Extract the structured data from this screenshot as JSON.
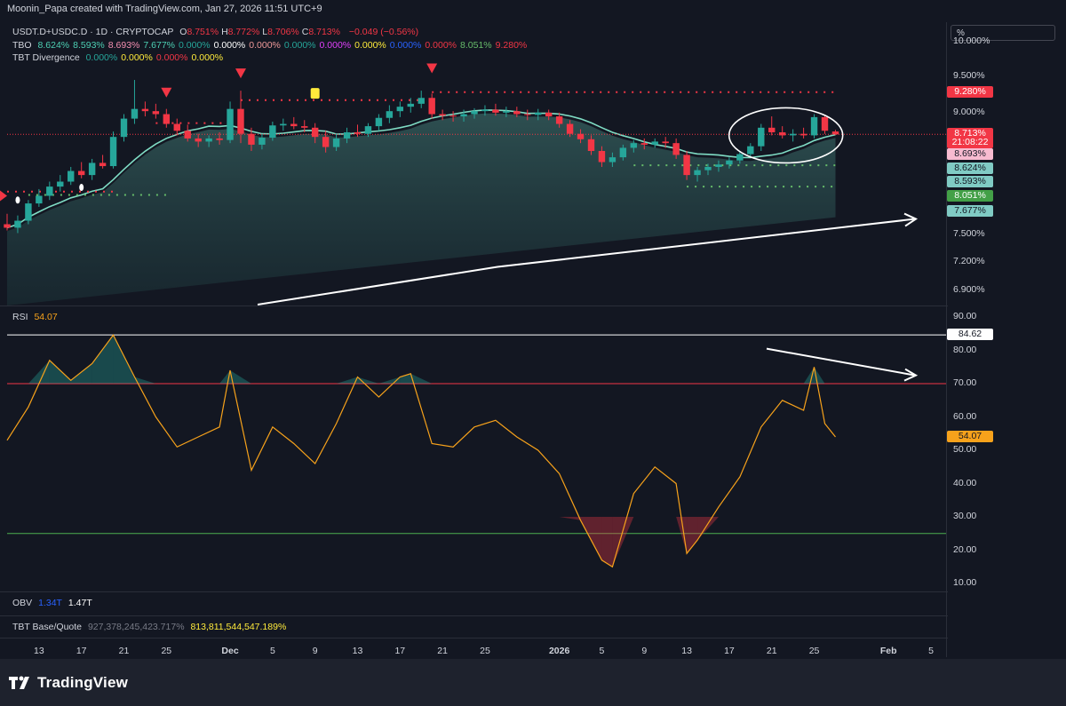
{
  "header": {
    "credit": "Moonin_Papa created with TradingView.com, Jan 27, 2026 11:51 UTC+9"
  },
  "legend": {
    "symbol": "USDT.D+USDC.D · 1D · CRYPTOCAP",
    "ohlc": [
      {
        "label": "O",
        "value": "8.751%"
      },
      {
        "label": "H",
        "value": "8.772%"
      },
      {
        "label": "L",
        "value": "8.706%"
      },
      {
        "label": "C",
        "value": "8.713%"
      }
    ],
    "change": "−0.049 (−0.56%)",
    "tbo_name": "TBO",
    "tbo_values": [
      {
        "v": "8.624%",
        "color": "#4dd0b4"
      },
      {
        "v": "8.593%",
        "color": "#4dd0b4"
      },
      {
        "v": "8.693%",
        "color": "#f48fb1"
      },
      {
        "v": "7.677%",
        "color": "#4dd0b4"
      },
      {
        "v": "0.000%",
        "color": "#26a69a"
      },
      {
        "v": "0.000%",
        "color": "#ffffff"
      },
      {
        "v": "0.000%",
        "color": "#ef9a9a"
      },
      {
        "v": "0.000%",
        "color": "#26a69a"
      },
      {
        "v": "0.000%",
        "color": "#e040fb"
      },
      {
        "v": "0.000%",
        "color": "#ffeb3b"
      },
      {
        "v": "0.000%",
        "color": "#2962ff"
      },
      {
        "v": "0.000%",
        "color": "#f23645"
      },
      {
        "v": "8.051%",
        "color": "#66bb6a"
      },
      {
        "v": "9.280%",
        "color": "#f23645"
      }
    ],
    "div_name": "TBT Divergence",
    "div_values": [
      {
        "v": "0.000%",
        "color": "#26a69a"
      },
      {
        "v": "0.000%",
        "color": "#ffeb3b"
      },
      {
        "v": "0.000%",
        "color": "#f23645"
      },
      {
        "v": "0.000%",
        "color": "#ffeb3b"
      }
    ]
  },
  "scale_mode": "%",
  "price_axis": [
    "10.000%",
    "9.500%",
    "9.000%",
    "7.500%",
    "7.200%",
    "6.900%"
  ],
  "price_tags": [
    {
      "text": "9.280%",
      "price": 9.28,
      "bg": "#f23645",
      "fg": "#ffffff"
    },
    {
      "text": "8.713%",
      "price": 8.713,
      "bg": "#f23645",
      "fg": "#ffffff"
    },
    {
      "text": "21:08:22",
      "price": 8.6,
      "bg": "#f23645",
      "fg": "#ffffff"
    },
    {
      "text": "8.693%",
      "price": 8.45,
      "bg": "#f8bbd0",
      "fg": "#131722"
    },
    {
      "text": "8.624%",
      "price": 8.28,
      "bg": "#80cbc4",
      "fg": "#131722"
    },
    {
      "text": "8.593%",
      "price": 8.11,
      "bg": "#80cbc4",
      "fg": "#131722"
    },
    {
      "text": "8.051%",
      "price": 7.94,
      "bg": "#43a047",
      "fg": "#ffffff"
    },
    {
      "text": "7.677%",
      "price": 7.77,
      "bg": "#80cbc4",
      "fg": "#131722"
    }
  ],
  "rsi": {
    "label": "RSI",
    "value": "54.07",
    "axis": [
      "90.00",
      "80.00",
      "70.00",
      "60.00",
      "50.00",
      "40.00",
      "30.00",
      "20.00",
      "10.00"
    ],
    "max_tag": "84.62",
    "value_tag": "54.07"
  },
  "obv": {
    "label": "OBV",
    "v1": "1.34T",
    "v2": "1.47T"
  },
  "tbt_bq": {
    "label": "TBT Base/Quote",
    "v1": "927,378,245,423.717%",
    "v2": "813,811,544,547.189%"
  },
  "time_axis": [
    "13",
    "17",
    "21",
    "25",
    "Dec",
    "5",
    "9",
    "13",
    "17",
    "21",
    "25",
    "2026",
    "5",
    "9",
    "13",
    "17",
    "21",
    "25",
    "Feb",
    "5"
  ],
  "brand": "TradingView",
  "colors": {
    "up": "#26a69a",
    "down": "#f23645",
    "rsi_line": "#f7a21b",
    "ma": "#7fdcc4",
    "ma_pink": "#e991c2",
    "bg": "#131722"
  },
  "chart_data": [
    {
      "type": "candlestick",
      "title": "USDT.D+USDC.D · 1D · CRYPTOCAP",
      "ylim": [
        6.75,
        10.3
      ],
      "y_scale": "log",
      "x_range": [
        "2025-11-10",
        "2026-02-06"
      ],
      "candles": [
        {
          "d": "2025-11-10",
          "o": 7.62,
          "h": 7.74,
          "l": 7.55,
          "c": 7.58
        },
        {
          "d": "2025-11-11",
          "o": 7.58,
          "h": 7.72,
          "l": 7.52,
          "c": 7.66
        },
        {
          "d": "2025-11-12",
          "o": 7.66,
          "h": 7.9,
          "l": 7.62,
          "c": 7.86
        },
        {
          "d": "2025-11-13",
          "o": 7.86,
          "h": 8.03,
          "l": 7.82,
          "c": 7.95
        },
        {
          "d": "2025-11-14",
          "o": 7.95,
          "h": 8.12,
          "l": 7.9,
          "c": 8.06
        },
        {
          "d": "2025-11-15",
          "o": 8.06,
          "h": 8.2,
          "l": 8.0,
          "c": 8.12
        },
        {
          "d": "2025-11-16",
          "o": 8.12,
          "h": 8.3,
          "l": 8.08,
          "c": 8.25
        },
        {
          "d": "2025-11-17",
          "o": 8.25,
          "h": 8.36,
          "l": 8.16,
          "c": 8.2
        },
        {
          "d": "2025-11-18",
          "o": 8.2,
          "h": 8.4,
          "l": 8.14,
          "c": 8.35
        },
        {
          "d": "2025-11-19",
          "o": 8.35,
          "h": 8.45,
          "l": 8.28,
          "c": 8.31
        },
        {
          "d": "2025-11-20",
          "o": 8.31,
          "h": 8.75,
          "l": 8.28,
          "c": 8.68
        },
        {
          "d": "2025-11-21",
          "o": 8.68,
          "h": 8.98,
          "l": 8.62,
          "c": 8.92
        },
        {
          "d": "2025-11-22",
          "o": 8.92,
          "h": 9.45,
          "l": 8.85,
          "c": 9.05
        },
        {
          "d": "2025-11-23",
          "o": 9.05,
          "h": 9.15,
          "l": 8.95,
          "c": 9.02
        },
        {
          "d": "2025-11-24",
          "o": 9.02,
          "h": 9.12,
          "l": 8.92,
          "c": 8.98
        },
        {
          "d": "2025-11-25",
          "o": 8.98,
          "h": 9.05,
          "l": 8.8,
          "c": 8.85
        },
        {
          "d": "2025-11-26",
          "o": 8.85,
          "h": 8.92,
          "l": 8.7,
          "c": 8.76
        },
        {
          "d": "2025-11-27",
          "o": 8.76,
          "h": 8.84,
          "l": 8.62,
          "c": 8.66
        },
        {
          "d": "2025-11-28",
          "o": 8.66,
          "h": 8.72,
          "l": 8.55,
          "c": 8.62
        },
        {
          "d": "2025-11-29",
          "o": 8.62,
          "h": 8.7,
          "l": 8.55,
          "c": 8.66
        },
        {
          "d": "2025-11-30",
          "o": 8.66,
          "h": 8.74,
          "l": 8.58,
          "c": 8.64
        },
        {
          "d": "2025-12-01",
          "o": 8.64,
          "h": 9.15,
          "l": 8.6,
          "c": 9.05
        },
        {
          "d": "2025-12-02",
          "o": 9.05,
          "h": 9.3,
          "l": 8.6,
          "c": 8.72
        },
        {
          "d": "2025-12-03",
          "o": 8.72,
          "h": 8.8,
          "l": 8.5,
          "c": 8.58
        },
        {
          "d": "2025-12-04",
          "o": 8.58,
          "h": 8.72,
          "l": 8.52,
          "c": 8.67
        },
        {
          "d": "2025-12-05",
          "o": 8.67,
          "h": 8.88,
          "l": 8.63,
          "c": 8.83
        },
        {
          "d": "2025-12-06",
          "o": 8.83,
          "h": 8.92,
          "l": 8.76,
          "c": 8.85
        },
        {
          "d": "2025-12-07",
          "o": 8.85,
          "h": 8.94,
          "l": 8.78,
          "c": 8.82
        },
        {
          "d": "2025-12-08",
          "o": 8.82,
          "h": 8.9,
          "l": 8.74,
          "c": 8.8
        },
        {
          "d": "2025-12-09",
          "o": 8.8,
          "h": 8.86,
          "l": 8.6,
          "c": 8.68
        },
        {
          "d": "2025-12-10",
          "o": 8.68,
          "h": 8.76,
          "l": 8.48,
          "c": 8.55
        },
        {
          "d": "2025-12-11",
          "o": 8.55,
          "h": 8.72,
          "l": 8.5,
          "c": 8.66
        },
        {
          "d": "2025-12-12",
          "o": 8.66,
          "h": 8.8,
          "l": 8.6,
          "c": 8.74
        },
        {
          "d": "2025-12-13",
          "o": 8.74,
          "h": 8.84,
          "l": 8.68,
          "c": 8.72
        },
        {
          "d": "2025-12-14",
          "o": 8.72,
          "h": 8.86,
          "l": 8.68,
          "c": 8.82
        },
        {
          "d": "2025-12-15",
          "o": 8.82,
          "h": 8.98,
          "l": 8.76,
          "c": 8.93
        },
        {
          "d": "2025-12-16",
          "o": 8.93,
          "h": 9.1,
          "l": 8.86,
          "c": 9.02
        },
        {
          "d": "2025-12-17",
          "o": 9.02,
          "h": 9.15,
          "l": 8.94,
          "c": 9.08
        },
        {
          "d": "2025-12-18",
          "o": 9.08,
          "h": 9.2,
          "l": 9.0,
          "c": 9.12
        },
        {
          "d": "2025-12-19",
          "o": 9.12,
          "h": 9.3,
          "l": 9.06,
          "c": 9.2
        },
        {
          "d": "2025-12-20",
          "o": 9.2,
          "h": 9.26,
          "l": 8.92,
          "c": 8.98
        },
        {
          "d": "2025-12-21",
          "o": 8.98,
          "h": 9.04,
          "l": 8.9,
          "c": 8.96
        },
        {
          "d": "2025-12-22",
          "o": 8.96,
          "h": 9.02,
          "l": 8.88,
          "c": 8.95
        },
        {
          "d": "2025-12-23",
          "o": 8.95,
          "h": 9.04,
          "l": 8.88,
          "c": 8.98
        },
        {
          "d": "2025-12-24",
          "o": 8.98,
          "h": 9.06,
          "l": 8.92,
          "c": 9.02
        },
        {
          "d": "2025-12-25",
          "o": 9.02,
          "h": 9.1,
          "l": 8.96,
          "c": 9.04
        },
        {
          "d": "2025-12-26",
          "o": 9.04,
          "h": 9.12,
          "l": 8.96,
          "c": 9.0
        },
        {
          "d": "2025-12-27",
          "o": 9.0,
          "h": 9.08,
          "l": 8.94,
          "c": 9.02
        },
        {
          "d": "2025-12-28",
          "o": 9.02,
          "h": 9.08,
          "l": 8.94,
          "c": 8.98
        },
        {
          "d": "2025-12-29",
          "o": 8.98,
          "h": 9.04,
          "l": 8.9,
          "c": 8.97
        },
        {
          "d": "2025-12-30",
          "o": 8.97,
          "h": 9.05,
          "l": 8.9,
          "c": 9.0
        },
        {
          "d": "2025-12-31",
          "o": 9.0,
          "h": 9.04,
          "l": 8.9,
          "c": 8.95
        },
        {
          "d": "2026-01-01",
          "o": 8.95,
          "h": 9.0,
          "l": 8.8,
          "c": 8.85
        },
        {
          "d": "2026-01-02",
          "o": 8.85,
          "h": 8.9,
          "l": 8.68,
          "c": 8.72
        },
        {
          "d": "2026-01-03",
          "o": 8.72,
          "h": 8.78,
          "l": 8.6,
          "c": 8.65
        },
        {
          "d": "2026-01-04",
          "o": 8.65,
          "h": 8.7,
          "l": 8.45,
          "c": 8.5
        },
        {
          "d": "2026-01-05",
          "o": 8.5,
          "h": 8.56,
          "l": 8.3,
          "c": 8.36
        },
        {
          "d": "2026-01-06",
          "o": 8.36,
          "h": 8.48,
          "l": 8.3,
          "c": 8.42
        },
        {
          "d": "2026-01-07",
          "o": 8.42,
          "h": 8.58,
          "l": 8.38,
          "c": 8.54
        },
        {
          "d": "2026-01-08",
          "o": 8.54,
          "h": 8.64,
          "l": 8.48,
          "c": 8.6
        },
        {
          "d": "2026-01-09",
          "o": 8.6,
          "h": 8.66,
          "l": 8.52,
          "c": 8.58
        },
        {
          "d": "2026-01-10",
          "o": 8.58,
          "h": 8.66,
          "l": 8.54,
          "c": 8.62
        },
        {
          "d": "2026-01-11",
          "o": 8.62,
          "h": 8.68,
          "l": 8.54,
          "c": 8.6
        },
        {
          "d": "2026-01-12",
          "o": 8.6,
          "h": 8.66,
          "l": 8.4,
          "c": 8.45
        },
        {
          "d": "2026-01-13",
          "o": 8.45,
          "h": 8.5,
          "l": 8.14,
          "c": 8.2
        },
        {
          "d": "2026-01-14",
          "o": 8.2,
          "h": 8.3,
          "l": 8.12,
          "c": 8.26
        },
        {
          "d": "2026-01-15",
          "o": 8.26,
          "h": 8.34,
          "l": 8.2,
          "c": 8.3
        },
        {
          "d": "2026-01-16",
          "o": 8.3,
          "h": 8.38,
          "l": 8.24,
          "c": 8.33
        },
        {
          "d": "2026-01-17",
          "o": 8.33,
          "h": 8.42,
          "l": 8.28,
          "c": 8.38
        },
        {
          "d": "2026-01-18",
          "o": 8.38,
          "h": 8.5,
          "l": 8.34,
          "c": 8.46
        },
        {
          "d": "2026-01-19",
          "o": 8.46,
          "h": 8.6,
          "l": 8.42,
          "c": 8.56
        },
        {
          "d": "2026-01-20",
          "o": 8.56,
          "h": 8.85,
          "l": 8.5,
          "c": 8.8
        },
        {
          "d": "2026-01-21",
          "o": 8.8,
          "h": 8.95,
          "l": 8.7,
          "c": 8.74
        },
        {
          "d": "2026-01-22",
          "o": 8.74,
          "h": 8.82,
          "l": 8.66,
          "c": 8.7
        },
        {
          "d": "2026-01-23",
          "o": 8.7,
          "h": 8.78,
          "l": 8.62,
          "c": 8.72
        },
        {
          "d": "2026-01-24",
          "o": 8.72,
          "h": 8.8,
          "l": 8.66,
          "c": 8.7
        },
        {
          "d": "2026-01-25",
          "o": 8.7,
          "h": 8.98,
          "l": 8.66,
          "c": 8.94
        },
        {
          "d": "2026-01-26",
          "o": 8.94,
          "h": 8.96,
          "l": 8.72,
          "c": 8.76
        },
        {
          "d": "2026-01-27",
          "o": 8.751,
          "h": 8.772,
          "l": 8.706,
          "c": 8.713
        }
      ],
      "annotations": [
        "circle around recent candles",
        "white trend arrow rising to the right"
      ]
    },
    {
      "type": "line",
      "title": "RSI",
      "ylim": [
        10,
        90
      ],
      "levels": [
        70,
        25
      ],
      "max_level": 84.62,
      "x_range": [
        "2025-11-10",
        "2026-02-06"
      ],
      "x": [
        "2025-11-10",
        "2025-11-12",
        "2025-11-14",
        "2025-11-16",
        "2025-11-18",
        "2025-11-20",
        "2025-11-22",
        "2025-11-24",
        "2025-11-26",
        "2025-11-28",
        "2025-11-30",
        "2025-12-01",
        "2025-12-03",
        "2025-12-05",
        "2025-12-07",
        "2025-12-09",
        "2025-12-11",
        "2025-12-13",
        "2025-12-15",
        "2025-12-17",
        "2025-12-18",
        "2025-12-20",
        "2025-12-22",
        "2025-12-24",
        "2025-12-26",
        "2025-12-28",
        "2025-12-30",
        "2026-01-01",
        "2026-01-03",
        "2026-01-05",
        "2026-01-06",
        "2026-01-08",
        "2026-01-10",
        "2026-01-12",
        "2026-01-13",
        "2026-01-14",
        "2026-01-16",
        "2026-01-18",
        "2026-01-20",
        "2026-01-22",
        "2026-01-24",
        "2026-01-25",
        "2026-01-26",
        "2026-01-27"
      ],
      "values": [
        53,
        63,
        77,
        71,
        76,
        84.6,
        72,
        60,
        51,
        54,
        57,
        74,
        44,
        57,
        52,
        46,
        58,
        72,
        66,
        72,
        73,
        52,
        51,
        57,
        59,
        54,
        50,
        43,
        29,
        17,
        15,
        37,
        45,
        40,
        19,
        23,
        33,
        42,
        57,
        65,
        62,
        75,
        58,
        54
      ]
    }
  ]
}
